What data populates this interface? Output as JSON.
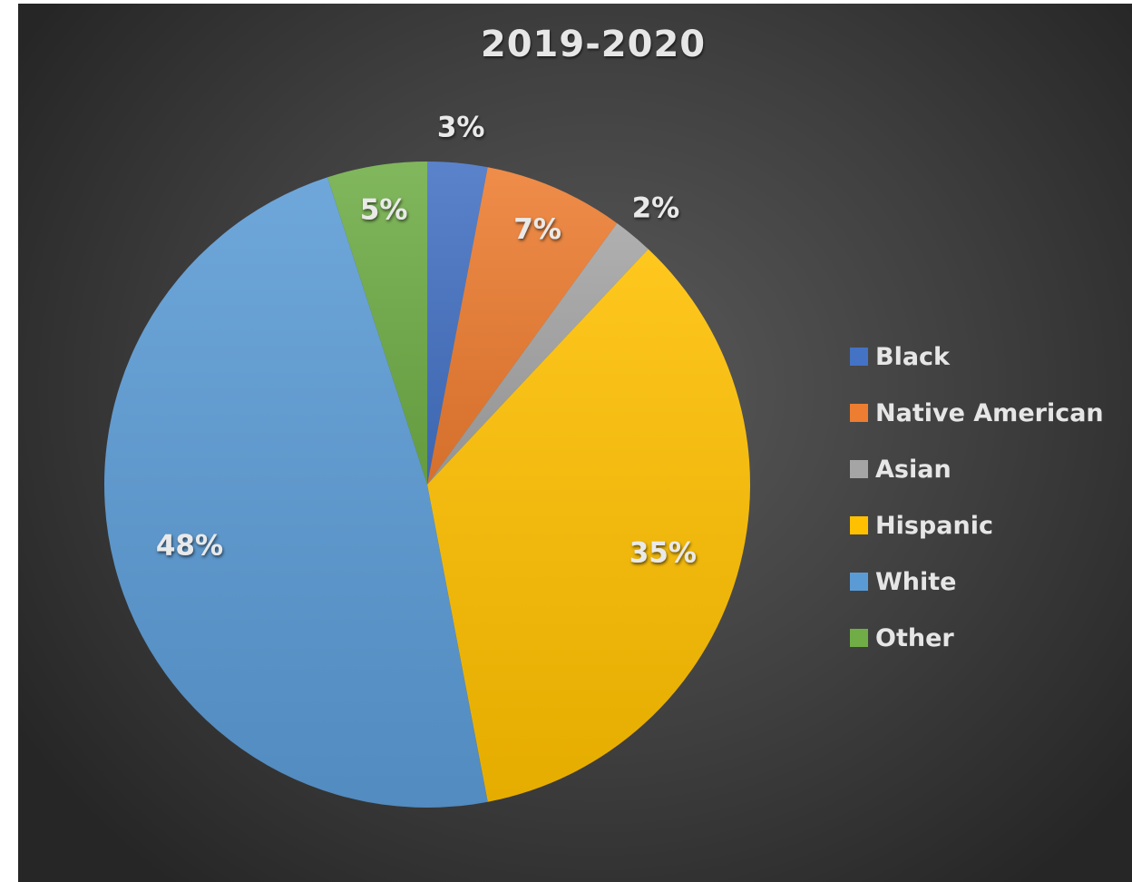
{
  "chart_data": {
    "type": "pie",
    "title": "2019-2020",
    "categories": [
      "Black",
      "Native American",
      "Asian",
      "Hispanic",
      "White",
      "Other"
    ],
    "values": [
      3,
      7,
      2,
      35,
      48,
      5
    ],
    "data_labels": [
      "3%",
      "7%",
      "2%",
      "35%",
      "48%",
      "5%"
    ],
    "colors": [
      "#4472c4",
      "#ed7d31",
      "#a5a5a5",
      "#ffc000",
      "#5b9bd5",
      "#70ad47"
    ],
    "legend_position": "right",
    "start_angle": "top",
    "direction": "clockwise"
  }
}
